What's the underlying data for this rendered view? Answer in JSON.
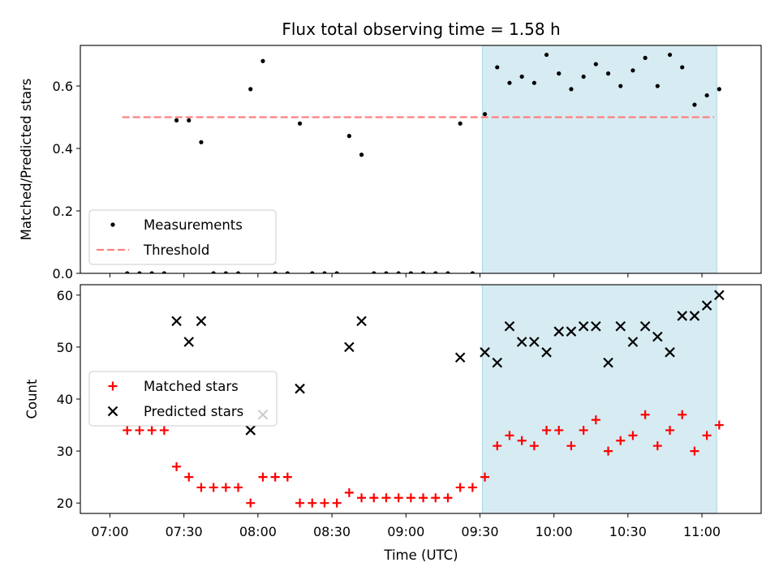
{
  "figure": {
    "title": "Flux total observing time = 1.58 h",
    "xlabel": "Time (UTC)"
  },
  "chart_data": [
    {
      "type": "scatter",
      "title": "Flux total observing time = 1.58 h",
      "xlabel": "",
      "ylabel": "Matched/Predicted stars",
      "xlim": [
        "06:48",
        "11:24"
      ],
      "ylim": [
        0,
        0.73
      ],
      "x_ticks": [
        "07:00",
        "07:30",
        "08:00",
        "08:30",
        "09:00",
        "09:30",
        "10:00",
        "10:30",
        "11:00"
      ],
      "y_ticks": [
        0.0,
        0.2,
        0.4,
        0.6
      ],
      "legend": {
        "placement": "lower-left",
        "entries": [
          "Measurements",
          "Threshold"
        ]
      },
      "shaded_span": {
        "x": [
          "09:31",
          "11:06"
        ],
        "color": "#add8e6"
      },
      "threshold": {
        "name": "Threshold",
        "y": 0.5,
        "x": [
          "07:05",
          "11:05"
        ],
        "color": "#ff7f7f",
        "style": "dashed"
      },
      "series": [
        {
          "name": "Measurements",
          "color": "#000000",
          "marker": "dot",
          "points": [
            [
              "07:07",
              0.0
            ],
            [
              "07:12",
              0.0
            ],
            [
              "07:17",
              0.0
            ],
            [
              "07:22",
              0.0
            ],
            [
              "07:27",
              0.49
            ],
            [
              "07:32",
              0.49
            ],
            [
              "07:37",
              0.42
            ],
            [
              "07:42",
              0.0
            ],
            [
              "07:47",
              0.0
            ],
            [
              "07:52",
              0.0
            ],
            [
              "07:57",
              0.59
            ],
            [
              "08:02",
              0.68
            ],
            [
              "08:07",
              0.0
            ],
            [
              "08:12",
              0.0
            ],
            [
              "08:17",
              0.48
            ],
            [
              "08:22",
              0.0
            ],
            [
              "08:27",
              0.0
            ],
            [
              "08:32",
              0.0
            ],
            [
              "08:37",
              0.44
            ],
            [
              "08:42",
              0.38
            ],
            [
              "08:47",
              0.0
            ],
            [
              "08:52",
              0.0
            ],
            [
              "08:57",
              0.0
            ],
            [
              "09:02",
              0.0
            ],
            [
              "09:07",
              0.0
            ],
            [
              "09:12",
              0.0
            ],
            [
              "09:17",
              0.0
            ],
            [
              "09:22",
              0.48
            ],
            [
              "09:27",
              0.0
            ],
            [
              "09:32",
              0.51
            ],
            [
              "09:37",
              0.66
            ],
            [
              "09:42",
              0.61
            ],
            [
              "09:47",
              0.63
            ],
            [
              "09:52",
              0.61
            ],
            [
              "09:57",
              0.7
            ],
            [
              "10:02",
              0.64
            ],
            [
              "10:07",
              0.59
            ],
            [
              "10:12",
              0.63
            ],
            [
              "10:17",
              0.67
            ],
            [
              "10:22",
              0.64
            ],
            [
              "10:27",
              0.6
            ],
            [
              "10:32",
              0.65
            ],
            [
              "10:37",
              0.69
            ],
            [
              "10:42",
              0.6
            ],
            [
              "10:47",
              0.7
            ],
            [
              "10:52",
              0.66
            ],
            [
              "10:57",
              0.54
            ],
            [
              "11:02",
              0.57
            ],
            [
              "11:07",
              0.59
            ]
          ]
        }
      ]
    },
    {
      "type": "scatter",
      "title": "",
      "xlabel": "Time (UTC)",
      "ylabel": "Count",
      "xlim": [
        "06:48",
        "11:24"
      ],
      "ylim": [
        18,
        62
      ],
      "x_ticks": [
        "07:00",
        "07:30",
        "08:00",
        "08:30",
        "09:00",
        "09:30",
        "10:00",
        "10:30",
        "11:00"
      ],
      "y_ticks": [
        20,
        30,
        40,
        50,
        60
      ],
      "legend": {
        "placement": "center-left",
        "entries": [
          "Matched stars",
          "Predicted stars"
        ]
      },
      "shaded_span": {
        "x": [
          "09:31",
          "11:06"
        ],
        "color": "#add8e6"
      },
      "series": [
        {
          "name": "Matched stars",
          "color": "#ff0000",
          "marker": "plus",
          "points": [
            [
              "07:07",
              34
            ],
            [
              "07:12",
              34
            ],
            [
              "07:17",
              34
            ],
            [
              "07:22",
              34
            ],
            [
              "07:27",
              27
            ],
            [
              "07:32",
              25
            ],
            [
              "07:37",
              23
            ],
            [
              "07:42",
              23
            ],
            [
              "07:47",
              23
            ],
            [
              "07:52",
              23
            ],
            [
              "07:57",
              20
            ],
            [
              "08:02",
              25
            ],
            [
              "08:07",
              25
            ],
            [
              "08:12",
              25
            ],
            [
              "08:17",
              20
            ],
            [
              "08:22",
              20
            ],
            [
              "08:27",
              20
            ],
            [
              "08:32",
              20
            ],
            [
              "08:37",
              22
            ],
            [
              "08:42",
              21
            ],
            [
              "08:47",
              21
            ],
            [
              "08:52",
              21
            ],
            [
              "08:57",
              21
            ],
            [
              "09:02",
              21
            ],
            [
              "09:07",
              21
            ],
            [
              "09:12",
              21
            ],
            [
              "09:17",
              21
            ],
            [
              "09:22",
              23
            ],
            [
              "09:27",
              23
            ],
            [
              "09:32",
              25
            ],
            [
              "09:37",
              31
            ],
            [
              "09:42",
              33
            ],
            [
              "09:47",
              32
            ],
            [
              "09:52",
              31
            ],
            [
              "09:57",
              34
            ],
            [
              "10:02",
              34
            ],
            [
              "10:07",
              31
            ],
            [
              "10:12",
              34
            ],
            [
              "10:17",
              36
            ],
            [
              "10:22",
              30
            ],
            [
              "10:27",
              32
            ],
            [
              "10:32",
              33
            ],
            [
              "10:37",
              37
            ],
            [
              "10:42",
              31
            ],
            [
              "10:47",
              34
            ],
            [
              "10:52",
              37
            ],
            [
              "10:57",
              30
            ],
            [
              "11:02",
              33
            ],
            [
              "11:07",
              35
            ]
          ]
        },
        {
          "name": "Predicted stars",
          "color": "#000000",
          "marker": "x",
          "points": [
            [
              "07:27",
              55
            ],
            [
              "07:32",
              51
            ],
            [
              "07:37",
              55
            ],
            [
              "07:57",
              34
            ],
            [
              "08:02",
              37
            ],
            [
              "08:17",
              42
            ],
            [
              "08:37",
              50
            ],
            [
              "08:42",
              55
            ],
            [
              "09:22",
              48
            ],
            [
              "09:32",
              49
            ],
            [
              "09:37",
              47
            ],
            [
              "09:42",
              54
            ],
            [
              "09:47",
              51
            ],
            [
              "09:52",
              51
            ],
            [
              "09:57",
              49
            ],
            [
              "10:02",
              53
            ],
            [
              "10:07",
              53
            ],
            [
              "10:12",
              54
            ],
            [
              "10:17",
              54
            ],
            [
              "10:22",
              47
            ],
            [
              "10:27",
              54
            ],
            [
              "10:32",
              51
            ],
            [
              "10:37",
              54
            ],
            [
              "10:42",
              52
            ],
            [
              "10:47",
              49
            ],
            [
              "10:52",
              56
            ],
            [
              "10:57",
              56
            ],
            [
              "11:02",
              58
            ],
            [
              "11:07",
              60
            ]
          ]
        }
      ]
    }
  ]
}
